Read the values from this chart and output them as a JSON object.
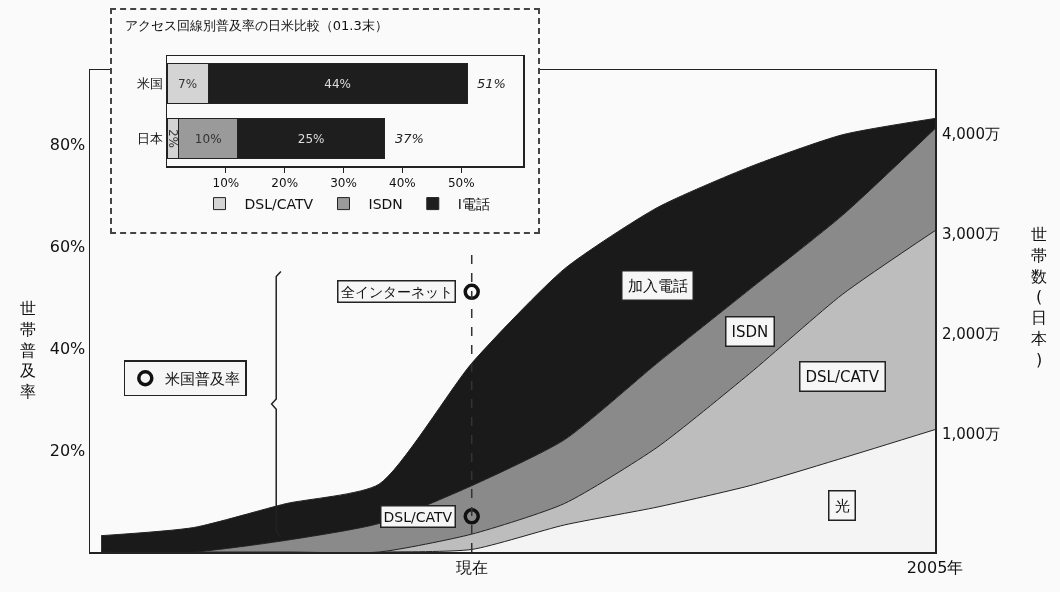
{
  "chart_data": [
    {
      "type": "area",
      "stacked": true,
      "ylabel": "世帯普及率",
      "y2label": "世帯数(日本)",
      "categories": [
        null,
        null,
        null,
        null,
        "現在",
        null,
        null,
        null,
        null,
        "2005年"
      ],
      "ylim": [
        0,
        94.5
      ],
      "yticks": [
        {
          "value": 20,
          "label": "20%"
        },
        {
          "value": 40,
          "label": "40%"
        },
        {
          "value": 60,
          "label": "60%"
        },
        {
          "value": 80,
          "label": "80%"
        }
      ],
      "y2lim": [
        -180,
        4640
      ],
      "y2ticks": [
        {
          "value": 1000,
          "label": "1,000万"
        },
        {
          "value": 2000,
          "label": "2,000万"
        },
        {
          "value": 3000,
          "label": "3,000万"
        },
        {
          "value": 4000,
          "label": "4,000万"
        }
      ],
      "grid": false,
      "legend": "left",
      "series": [
        {
          "name": "光",
          "color": "#f4f4f4",
          "values": [
            0,
            0,
            0,
            0,
            0.5,
            5.3,
            8.8,
            13,
            18.4,
            24
          ]
        },
        {
          "name": "DSL/CATV",
          "color": "#bdbdbd",
          "values": [
            0,
            0,
            0,
            0,
            3,
            4.2,
            11.7,
            22,
            32.1,
            39
          ]
        },
        {
          "name": "ISDN",
          "color": "#8a8a8a",
          "values": [
            0,
            0,
            2.3,
            5.6,
            9.5,
            12.5,
            16.5,
            16.5,
            15.5,
            20
          ]
        },
        {
          "name": "加入電話",
          "color": "#1a1a1a",
          "values": [
            3.2,
            4.8,
            7.2,
            7.7,
            24,
            33.5,
            30.5,
            24,
            15.8,
            2
          ]
        },
        {
          "name": "米国普及率",
          "type": "scatter",
          "marker": "circle",
          "color": "#111111",
          "x": [
            "現在",
            "現在"
          ],
          "values": [
            51,
            7
          ]
        }
      ],
      "annotations": [
        "全インターネット",
        "DSL/CATV"
      ],
      "ref_lines": [
        {
          "axis": "x",
          "value": "現在",
          "line_style": "dashed",
          "color": "#333333"
        }
      ]
    },
    {
      "type": "bar",
      "orientation": "horizontal",
      "stacked": true,
      "title": "アクセス回線別普及率の日米比較（01.3末）",
      "categories": [
        "米国",
        "日本"
      ],
      "xlim": [
        0,
        60.5
      ],
      "xticks": [
        {
          "value": 10,
          "label": "10%"
        },
        {
          "value": 20,
          "label": "20%"
        },
        {
          "value": 30,
          "label": "30%"
        },
        {
          "value": 40,
          "label": "40%"
        },
        {
          "value": 50,
          "label": "50%"
        }
      ],
      "legend": "bottom",
      "grid": false,
      "series": [
        {
          "name": "DSL/CATV",
          "color": "#d4d4d4",
          "values": [
            7,
            2
          ],
          "value_labels": [
            "7%",
            "2%"
          ]
        },
        {
          "name": "ISDN",
          "color": "#9a9a9a",
          "values": [
            null,
            10
          ],
          "value_labels": [
            null,
            "10%"
          ]
        },
        {
          "name": "I電話",
          "color": "#1e1e1e",
          "values": [
            44,
            25
          ],
          "value_labels": [
            "44%",
            "25%"
          ]
        }
      ],
      "totals": [
        "51%",
        "37%"
      ]
    }
  ]
}
